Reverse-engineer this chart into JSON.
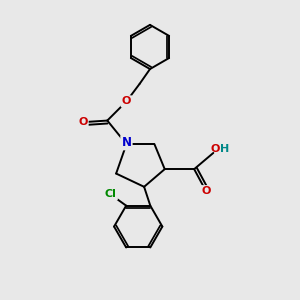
{
  "background_color": "#e8e8e8",
  "bond_color": "#000000",
  "atom_colors": {
    "N": "#0000cc",
    "O": "#cc0000",
    "Cl": "#008800",
    "H": "#008888"
  },
  "figsize": [
    3.0,
    3.0
  ],
  "dpi": 100
}
